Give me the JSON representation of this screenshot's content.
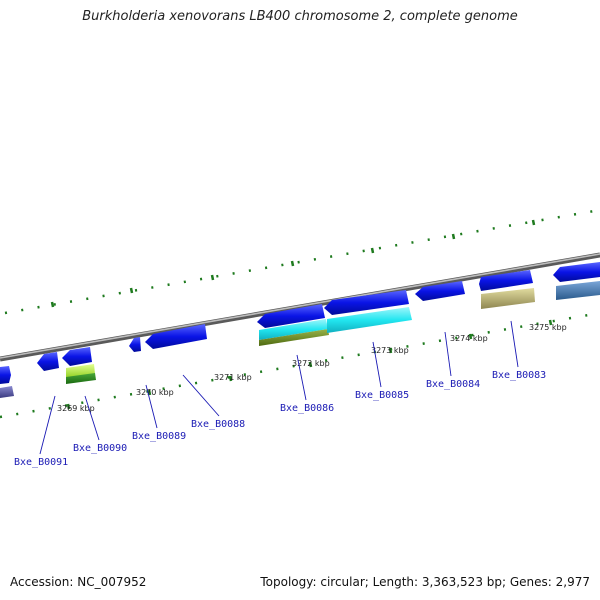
{
  "title": "Burkholderia xenovorans LB400 chromosome 2, complete genome",
  "footer": {
    "accession": "Accession: NC_007952",
    "topology": "Topology: circular; Length: 3,363,523 bp; Genes: 2,977"
  },
  "tick_labels": [
    "3269 kbp",
    "3270 kbp",
    "3271 kbp",
    "3272 kbp",
    "3273 kbp",
    "3274 kbp",
    "3275 kbp"
  ],
  "gene_labels": [
    "Bxe_B0091",
    "Bxe_B0090",
    "Bxe_B0089",
    "Bxe_B0088",
    "Bxe_B0086",
    "Bxe_B0085",
    "Bxe_B0084",
    "Bxe_B0083"
  ],
  "colors": {
    "gene_blue": "#0a14e6",
    "cyan": "#22e6f0",
    "olive": "#6e8c1e",
    "khaki": "#c8c07a",
    "steel": "#4a7eb4",
    "lime": "#b4f040",
    "dark_green": "#2a8c1e",
    "backbone": "#8a8a8a",
    "tick": "#1e7a1e",
    "label_blue": "#1a1ab4"
  }
}
